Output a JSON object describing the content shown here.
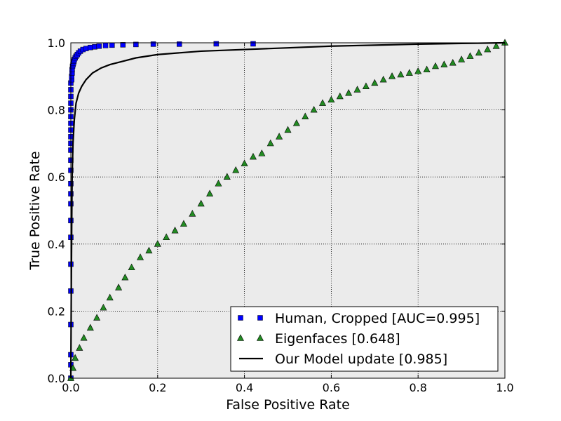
{
  "chart_data": {
    "type": "line",
    "title": "",
    "xlabel": "False Positive Rate",
    "ylabel": "True Positive Rate",
    "xlim": [
      0.0,
      1.0
    ],
    "ylim": [
      0.0,
      1.0
    ],
    "xticks": [
      0.0,
      0.2,
      0.4,
      0.6,
      0.8,
      1.0
    ],
    "yticks": [
      0.0,
      0.2,
      0.4,
      0.6,
      0.8,
      1.0
    ],
    "xtick_labels": [
      "0.0",
      "0.2",
      "0.4",
      "0.6",
      "0.8",
      "1.0"
    ],
    "ytick_labels": [
      "0.0",
      "0.2",
      "0.4",
      "0.6",
      "0.8",
      "1.0"
    ],
    "grid": true,
    "legend_position": "lower-right",
    "background_color": "#ebebeb",
    "series": [
      {
        "name": "Human, Cropped [AUC=0.995]",
        "marker": "square",
        "color": "#0000ff",
        "line": false,
        "points": [
          [
            0.0,
            0.0
          ],
          [
            0.0,
            0.04
          ],
          [
            0.0,
            0.07
          ],
          [
            0.0,
            0.16
          ],
          [
            0.0,
            0.26
          ],
          [
            0.0,
            0.34
          ],
          [
            0.0,
            0.42
          ],
          [
            0.0,
            0.47
          ],
          [
            0.0,
            0.52
          ],
          [
            0.0,
            0.55
          ],
          [
            0.0,
            0.58
          ],
          [
            0.0,
            0.62
          ],
          [
            0.0,
            0.65
          ],
          [
            0.0,
            0.68
          ],
          [
            0.0,
            0.7
          ],
          [
            0.0,
            0.72
          ],
          [
            0.0,
            0.74
          ],
          [
            0.0,
            0.76
          ],
          [
            0.0,
            0.78
          ],
          [
            0.0,
            0.8
          ],
          [
            0.0,
            0.82
          ],
          [
            0.0,
            0.84
          ],
          [
            0.0,
            0.86
          ],
          [
            0.0,
            0.88
          ],
          [
            0.002,
            0.89
          ],
          [
            0.002,
            0.9
          ],
          [
            0.003,
            0.91
          ],
          [
            0.003,
            0.92
          ],
          [
            0.004,
            0.93
          ],
          [
            0.005,
            0.935
          ],
          [
            0.006,
            0.94
          ],
          [
            0.007,
            0.945
          ],
          [
            0.008,
            0.95
          ],
          [
            0.01,
            0.955
          ],
          [
            0.012,
            0.96
          ],
          [
            0.015,
            0.965
          ],
          [
            0.018,
            0.97
          ],
          [
            0.022,
            0.975
          ],
          [
            0.028,
            0.98
          ],
          [
            0.035,
            0.983
          ],
          [
            0.045,
            0.986
          ],
          [
            0.055,
            0.988
          ],
          [
            0.065,
            0.99
          ],
          [
            0.08,
            0.992
          ],
          [
            0.095,
            0.993
          ],
          [
            0.12,
            0.994
          ],
          [
            0.15,
            0.995
          ],
          [
            0.19,
            0.996
          ],
          [
            0.25,
            0.996
          ],
          [
            0.335,
            0.997
          ],
          [
            0.42,
            0.997
          ]
        ]
      },
      {
        "name": "Eigenfaces [0.648]",
        "marker": "triangle",
        "color": "#228b22",
        "line": false,
        "points": [
          [
            0.0,
            0.0
          ],
          [
            0.005,
            0.03
          ],
          [
            0.01,
            0.06
          ],
          [
            0.02,
            0.09
          ],
          [
            0.03,
            0.12
          ],
          [
            0.045,
            0.15
          ],
          [
            0.06,
            0.18
          ],
          [
            0.075,
            0.21
          ],
          [
            0.09,
            0.24
          ],
          [
            0.11,
            0.27
          ],
          [
            0.125,
            0.3
          ],
          [
            0.14,
            0.33
          ],
          [
            0.16,
            0.36
          ],
          [
            0.18,
            0.38
          ],
          [
            0.2,
            0.4
          ],
          [
            0.22,
            0.42
          ],
          [
            0.24,
            0.44
          ],
          [
            0.26,
            0.46
          ],
          [
            0.28,
            0.49
          ],
          [
            0.3,
            0.52
          ],
          [
            0.32,
            0.55
          ],
          [
            0.34,
            0.58
          ],
          [
            0.36,
            0.6
          ],
          [
            0.38,
            0.62
          ],
          [
            0.4,
            0.64
          ],
          [
            0.42,
            0.66
          ],
          [
            0.44,
            0.67
          ],
          [
            0.46,
            0.7
          ],
          [
            0.48,
            0.72
          ],
          [
            0.5,
            0.74
          ],
          [
            0.52,
            0.76
          ],
          [
            0.54,
            0.78
          ],
          [
            0.56,
            0.8
          ],
          [
            0.58,
            0.82
          ],
          [
            0.6,
            0.83
          ],
          [
            0.62,
            0.84
          ],
          [
            0.64,
            0.85
          ],
          [
            0.66,
            0.86
          ],
          [
            0.68,
            0.87
          ],
          [
            0.7,
            0.88
          ],
          [
            0.72,
            0.89
          ],
          [
            0.74,
            0.9
          ],
          [
            0.76,
            0.905
          ],
          [
            0.78,
            0.91
          ],
          [
            0.8,
            0.915
          ],
          [
            0.82,
            0.92
          ],
          [
            0.84,
            0.93
          ],
          [
            0.86,
            0.935
          ],
          [
            0.88,
            0.94
          ],
          [
            0.9,
            0.95
          ],
          [
            0.92,
            0.96
          ],
          [
            0.94,
            0.97
          ],
          [
            0.96,
            0.98
          ],
          [
            0.98,
            0.99
          ],
          [
            1.0,
            1.0
          ]
        ]
      },
      {
        "name": "Our Model update [0.985]",
        "marker": "none",
        "color": "#000000",
        "line": true,
        "points": [
          [
            0.0,
            0.0
          ],
          [
            0.001,
            0.25
          ],
          [
            0.002,
            0.45
          ],
          [
            0.003,
            0.6
          ],
          [
            0.005,
            0.7
          ],
          [
            0.008,
            0.77
          ],
          [
            0.012,
            0.82
          ],
          [
            0.018,
            0.85
          ],
          [
            0.025,
            0.87
          ],
          [
            0.035,
            0.89
          ],
          [
            0.05,
            0.91
          ],
          [
            0.07,
            0.925
          ],
          [
            0.09,
            0.935
          ],
          [
            0.12,
            0.945
          ],
          [
            0.15,
            0.955
          ],
          [
            0.2,
            0.965
          ],
          [
            0.25,
            0.97
          ],
          [
            0.3,
            0.975
          ],
          [
            0.4,
            0.98
          ],
          [
            0.5,
            0.985
          ],
          [
            0.6,
            0.99
          ],
          [
            0.7,
            0.993
          ],
          [
            0.8,
            0.996
          ],
          [
            0.9,
            0.998
          ],
          [
            1.0,
            1.0
          ]
        ]
      }
    ]
  }
}
